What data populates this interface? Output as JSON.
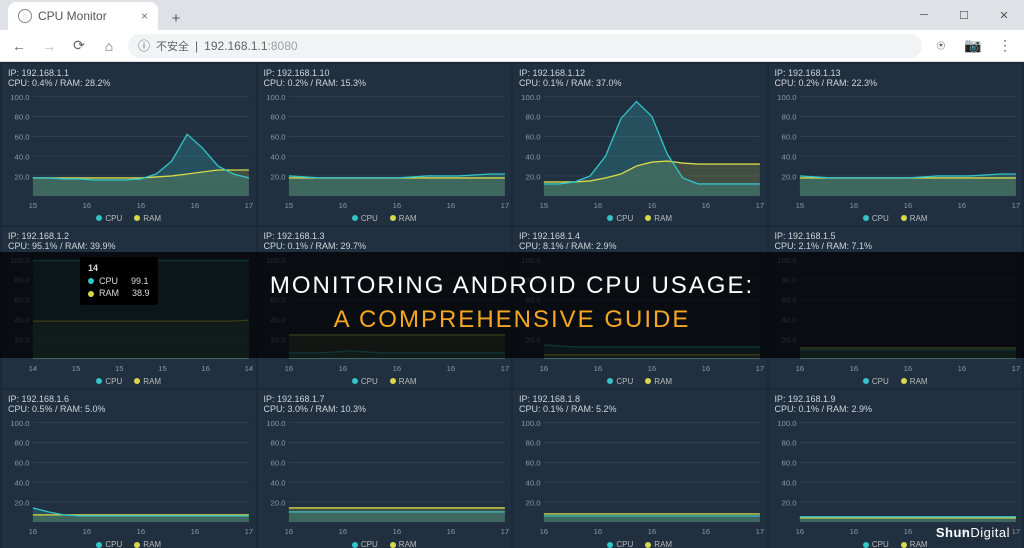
{
  "browser": {
    "tab_title": "CPU Monitor",
    "omnibox_security": "不安全",
    "url_host": "192.168.1.1",
    "url_port": ":8080"
  },
  "overlay": {
    "line1": "MONITORING ANDROID CPU USAGE:",
    "line2": "A COMPREHENSIVE GUIDE",
    "watermark_bold": "Shun",
    "watermark_rest": "Digital"
  },
  "legend": {
    "cpu": "CPU",
    "ram": "RAM"
  },
  "colors": {
    "panel_bg": "#203040",
    "grid": "#3a4a5a",
    "axis_text": "#8a99a8",
    "cpu_line": "#35c3c8",
    "cpu_fill": "rgba(53,195,200,0.22)",
    "ram_line": "#d8d848",
    "ram_fill": "rgba(216,216,72,0.18)"
  },
  "chart_defs": {
    "y_ticks": [
      "100.0",
      "80.0",
      "60.0",
      "40.0",
      "20.0"
    ],
    "x_ticks_a": [
      "15",
      "16",
      "16",
      "16",
      "17"
    ],
    "x_ticks_b": [
      "14",
      "15",
      "15",
      "15",
      "16",
      "14"
    ],
    "x_ticks_c": [
      "16",
      "16",
      "16",
      "16",
      "17"
    ]
  },
  "tooltip": {
    "title": "14",
    "rows": [
      {
        "color": "#35c3c8",
        "label": "CPU",
        "value": "99.1"
      },
      {
        "color": "#d8d848",
        "label": "RAM",
        "value": "38.9"
      }
    ]
  },
  "panels": [
    {
      "ip": "IP: 192.168.1.1",
      "stat": "CPU: 0.4% / RAM: 28.2%",
      "xset": "a",
      "cpu": [
        18,
        18,
        17,
        17,
        16,
        16,
        16,
        17,
        22,
        35,
        62,
        48,
        30,
        22,
        18
      ],
      "ram": [
        18,
        18,
        18,
        18,
        18,
        18,
        18,
        18,
        19,
        20,
        22,
        24,
        26,
        26,
        26
      ]
    },
    {
      "ip": "IP: 192.168.1.10",
      "stat": "CPU: 0.2% / RAM: 15.3%",
      "xset": "a",
      "cpu": [
        20,
        19,
        18,
        18,
        18,
        18,
        18,
        18,
        19,
        20,
        20,
        20,
        21,
        22,
        22
      ],
      "ram": [
        18,
        18,
        18,
        18,
        18,
        18,
        18,
        18,
        18,
        18,
        18,
        18,
        18,
        18,
        18
      ]
    },
    {
      "ip": "IP: 192.168.1.12",
      "stat": "CPU: 0.1% / RAM: 37.0%",
      "xset": "a",
      "cpu": [
        12,
        12,
        14,
        20,
        40,
        78,
        95,
        80,
        42,
        18,
        12,
        12,
        12,
        12,
        12
      ],
      "ram": [
        14,
        14,
        14,
        15,
        18,
        22,
        30,
        34,
        35,
        33,
        32,
        32,
        32,
        32,
        32
      ]
    },
    {
      "ip": "IP: 192.168.1.13",
      "stat": "CPU: 0.2% / RAM: 22.3%",
      "xset": "a",
      "cpu": [
        20,
        19,
        18,
        18,
        18,
        18,
        18,
        18,
        19,
        20,
        20,
        20,
        21,
        22,
        22
      ],
      "ram": [
        18,
        18,
        18,
        18,
        18,
        18,
        18,
        18,
        18,
        18,
        18,
        18,
        18,
        18,
        18
      ]
    },
    {
      "ip": "IP: 192.168.1.2",
      "stat": "CPU: 95.1% / RAM: 39.9%",
      "xset": "b",
      "tooltip": true,
      "cpu": [
        99,
        99,
        99,
        99,
        99,
        99,
        99,
        99,
        99,
        99,
        99,
        99,
        99,
        99,
        99
      ],
      "ram": [
        38,
        38,
        38,
        38,
        38,
        38,
        38,
        38,
        38,
        38,
        38,
        38,
        38,
        38,
        39
      ]
    },
    {
      "ip": "IP: 192.168.1.3",
      "stat": "CPU: 0.1% / RAM: 29.7%",
      "xset": "c",
      "cpu": [
        6,
        6,
        6,
        7,
        8,
        7,
        6,
        6,
        6,
        6,
        6,
        6,
        6,
        6,
        6
      ],
      "ram": [
        24,
        24,
        24,
        24,
        24,
        24,
        24,
        24,
        24,
        24,
        24,
        24,
        24,
        24,
        24
      ]
    },
    {
      "ip": "IP: 192.168.1.4",
      "stat": "CPU: 8.1% / RAM: 2.9%",
      "xset": "c",
      "cpu": [
        14,
        13,
        12,
        12,
        12,
        12,
        12,
        12,
        12,
        12,
        12,
        12,
        12,
        12,
        12
      ],
      "ram": [
        4,
        4,
        4,
        4,
        4,
        4,
        4,
        4,
        4,
        4,
        4,
        4,
        4,
        4,
        4
      ]
    },
    {
      "ip": "IP: 192.168.1.5",
      "stat": "CPU: 2.1% / RAM: 7.1%",
      "xset": "c",
      "cpu": [
        9,
        9,
        9,
        9,
        9,
        9,
        9,
        9,
        9,
        9,
        9,
        9,
        9,
        9,
        9
      ],
      "ram": [
        11,
        11,
        11,
        11,
        11,
        11,
        11,
        11,
        11,
        11,
        11,
        11,
        11,
        11,
        11
      ]
    },
    {
      "ip": "IP: 192.168.1.6",
      "stat": "CPU: 0.5% / RAM: 5.0%",
      "xset": "c",
      "cpu": [
        14,
        10,
        7,
        6,
        6,
        6,
        6,
        6,
        6,
        6,
        6,
        6,
        6,
        6,
        6
      ],
      "ram": [
        7,
        7,
        7,
        7,
        7,
        7,
        7,
        7,
        7,
        7,
        7,
        7,
        7,
        7,
        7
      ]
    },
    {
      "ip": "IP: 192.168.1.7",
      "stat": "CPU: 3.0% / RAM: 10.3%",
      "xset": "c",
      "cpu": [
        10,
        10,
        10,
        10,
        10,
        10,
        10,
        10,
        10,
        10,
        10,
        10,
        10,
        10,
        10
      ],
      "ram": [
        14,
        14,
        14,
        14,
        14,
        14,
        14,
        14,
        14,
        14,
        14,
        14,
        14,
        14,
        14
      ]
    },
    {
      "ip": "IP: 192.168.1.8",
      "stat": "CPU: 0.1% / RAM: 5.2%",
      "xset": "c",
      "cpu": [
        6,
        6,
        6,
        6,
        6,
        6,
        6,
        6,
        6,
        6,
        6,
        6,
        6,
        6,
        6
      ],
      "ram": [
        8,
        8,
        8,
        8,
        8,
        8,
        8,
        8,
        8,
        8,
        8,
        8,
        8,
        8,
        8
      ]
    },
    {
      "ip": "IP: 192.168.1.9",
      "stat": "CPU: 0.1% / RAM: 2.9%",
      "xset": "c",
      "cpu": [
        5,
        5,
        5,
        5,
        5,
        5,
        5,
        5,
        5,
        5,
        5,
        5,
        5,
        5,
        5
      ],
      "ram": [
        4,
        4,
        4,
        4,
        4,
        4,
        4,
        4,
        4,
        4,
        4,
        4,
        4,
        4,
        4
      ]
    }
  ]
}
